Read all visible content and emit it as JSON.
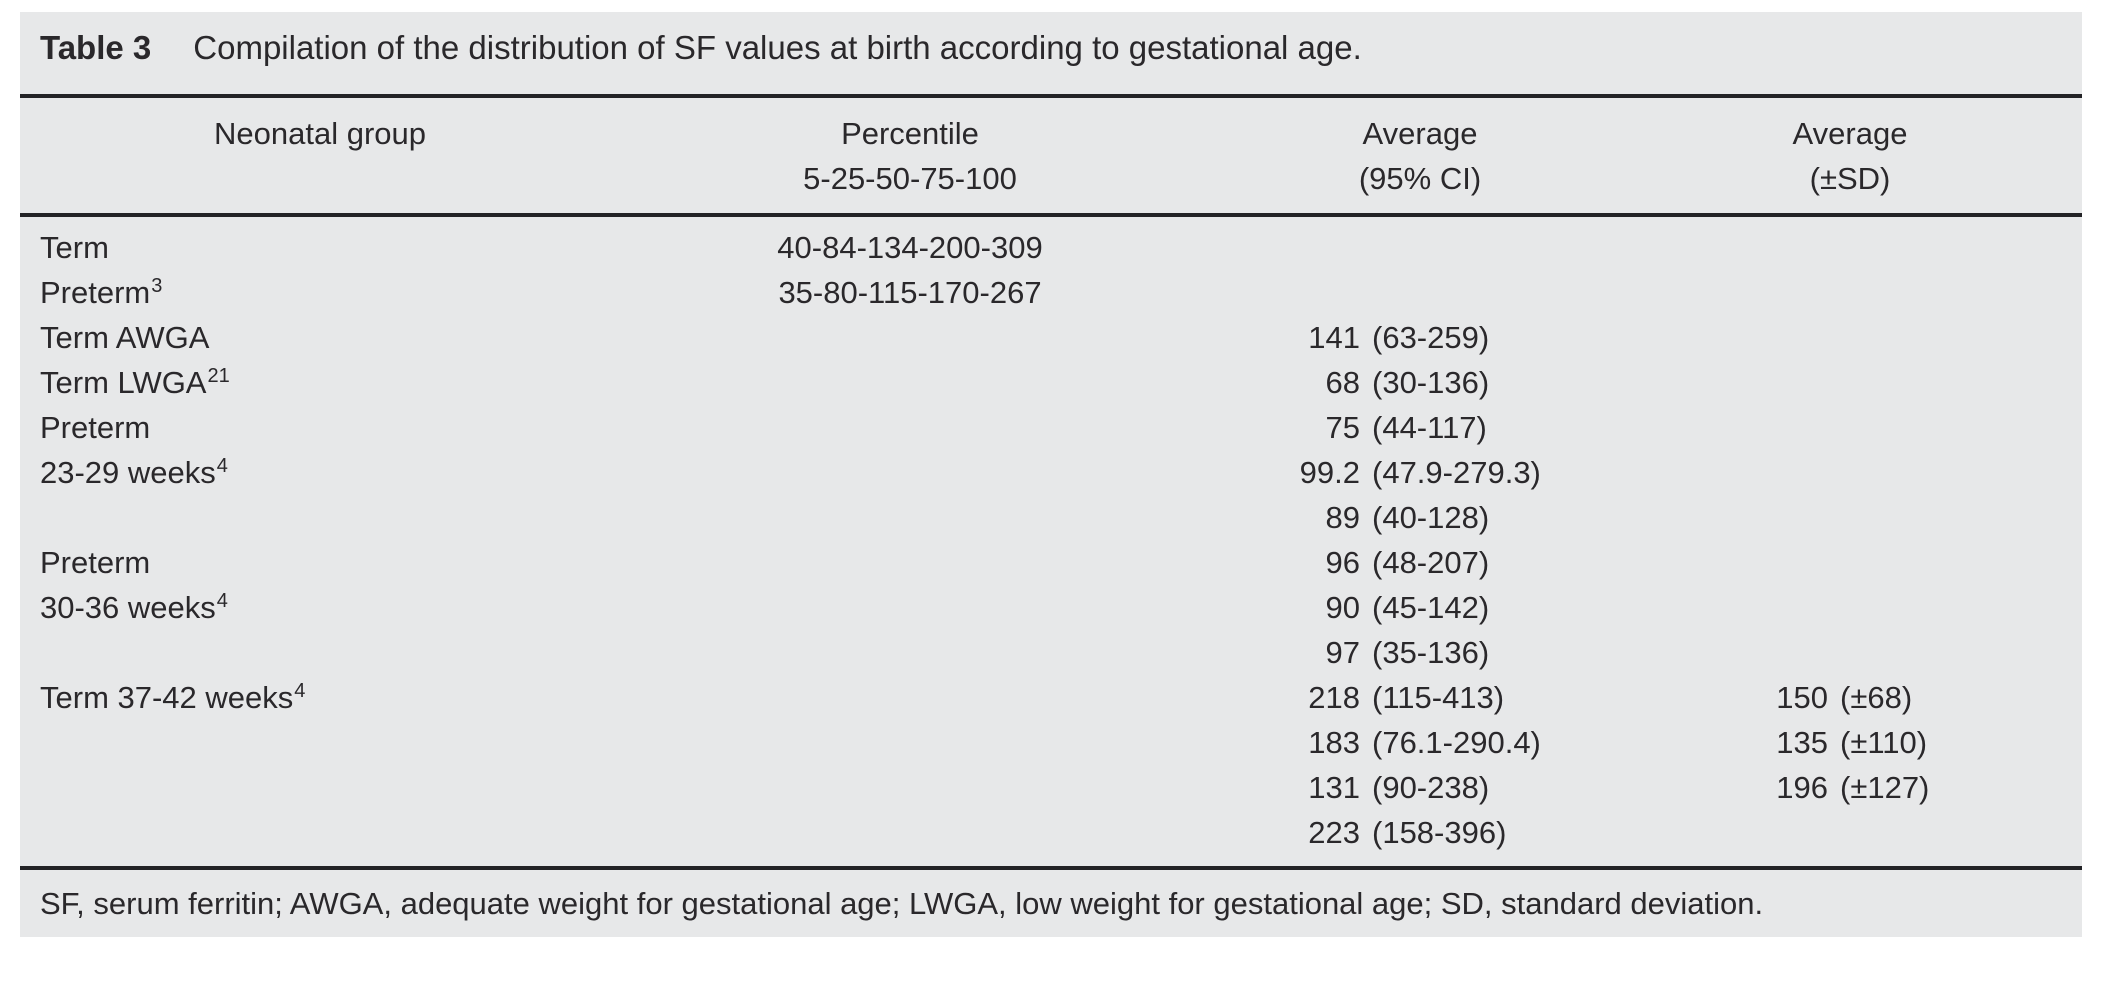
{
  "title": {
    "label": "Table 3",
    "text": "Compilation of the distribution of SF values at birth according to gestational age."
  },
  "columns": {
    "group": {
      "line1": "Neonatal group",
      "line2": ""
    },
    "percentile": {
      "line1": "Percentile",
      "line2": "5-25-50-75-100"
    },
    "avg_ci": {
      "line1": "Average",
      "line2": "(95% CI)"
    },
    "avg_sd": {
      "line1": "Average",
      "line2": "(±SD)"
    }
  },
  "rows": [
    {
      "group": "Term",
      "percentile": "40-84-134-200-309"
    },
    {
      "group": "Preterm",
      "sup": "3",
      "percentile": "35-80-115-170-267"
    },
    {
      "group": "Term AWGA",
      "ci_num": "141",
      "ci_range": "(63-259)"
    },
    {
      "group": "Term LWGA",
      "sup": "21",
      "ci_num": "68",
      "ci_range": "(30-136)"
    },
    {
      "group": "Preterm",
      "ci_num": "75",
      "ci_range": "(44-117)"
    },
    {
      "group": "23-29 weeks",
      "sup": "4",
      "ci_num": "99.2",
      "ci_range": "(47.9-279.3)"
    },
    {
      "group": "",
      "ci_num": "89",
      "ci_range": "(40-128)"
    },
    {
      "group": "Preterm",
      "ci_num": "96",
      "ci_range": "(48-207)"
    },
    {
      "group": "30-36 weeks",
      "sup": "4",
      "ci_num": "90",
      "ci_range": "(45-142)"
    },
    {
      "group": "",
      "ci_num": "97",
      "ci_range": "(35-136)"
    },
    {
      "group": "Term 37-42 weeks",
      "sup": "4",
      "ci_num": "218",
      "ci_range": "(115-413)",
      "sd_num": "150",
      "sd_range": "(±68)"
    },
    {
      "group": "",
      "ci_num": "183",
      "ci_range": "(76.1-290.4)",
      "sd_num": "135",
      "sd_range": "(±110)"
    },
    {
      "group": "",
      "ci_num": "131",
      "ci_range": "(90-238)",
      "sd_num": "196",
      "sd_range": "(±127)"
    },
    {
      "group": "",
      "ci_num": "223",
      "ci_range": "(158-396)"
    }
  ],
  "footnote": "SF, serum ferritin; AWGA, adequate weight for gestational age; LWGA, low weight for gestational age; SD, standard deviation.",
  "colors": {
    "background": "#e7e8e9",
    "text": "#2a282b",
    "rule": "#232326"
  }
}
